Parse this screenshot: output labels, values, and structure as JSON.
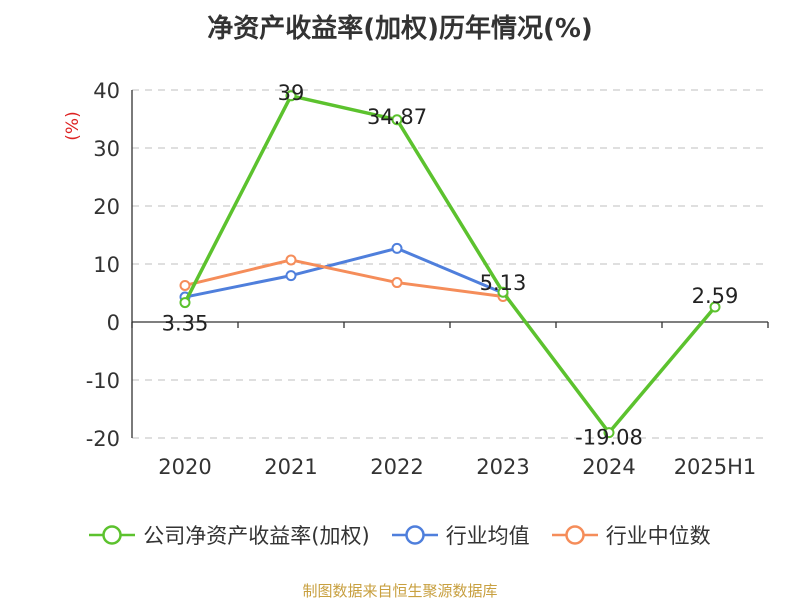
{
  "title": "净资产收益率(加权)历年情况(%)",
  "source": "制图数据来自恒生聚源数据库",
  "chart_data": {
    "type": "line",
    "title": "净资产收益率(加权)历年情况(%)",
    "ylabel": "(%)",
    "ylim": [
      -20,
      40
    ],
    "yticks": [
      40,
      30,
      20,
      10,
      0,
      -10,
      -20
    ],
    "categories": [
      "2020",
      "2021",
      "2022",
      "2023",
      "2024",
      "2025H1"
    ],
    "grid": true,
    "legend_position": "bottom",
    "series": [
      {
        "name": "公司净资产收益率(加权)",
        "color": "#5cc22e",
        "values": [
          3.35,
          39,
          34.87,
          5.13,
          -19.08,
          2.59
        ],
        "labels": [
          "3.35",
          "39",
          "34.87",
          "5.13",
          "-19.08",
          "2.59"
        ]
      },
      {
        "name": "行业均值",
        "color": "#4f7fdc",
        "values": [
          4.3,
          8.0,
          12.7,
          5.0,
          null,
          null
        ]
      },
      {
        "name": "行业中位数",
        "color": "#f58d5a",
        "values": [
          6.3,
          10.7,
          6.8,
          4.4,
          null,
          null
        ]
      }
    ]
  }
}
